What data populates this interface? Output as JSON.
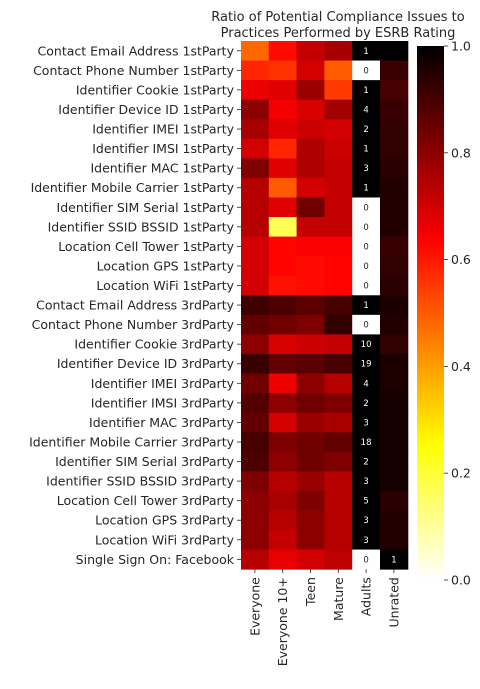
{
  "chart_data": {
    "type": "heatmap",
    "title_lines": [
      "Ratio of Potential Compliance Issues to",
      "Practices Performed by ESRB Rating"
    ],
    "rows": [
      "Contact Email Address 1stParty",
      "Contact Phone Number 1stParty",
      "Identifier Cookie 1stParty",
      "Identifier Device ID 1stParty",
      "Identifier IMEI 1stParty",
      "Identifier IMSI 1stParty",
      "Identifier MAC 1stParty",
      "Identifier Mobile Carrier 1stParty",
      "Identifier SIM Serial 1stParty",
      "Identifier SSID BSSID 1stParty",
      "Location Cell Tower 1stParty",
      "Location GPS 1stParty",
      "Location WiFi 1stParty",
      "Contact Email Address 3rdParty",
      "Contact Phone Number 3rdParty",
      "Identifier Cookie 3rdParty",
      "Identifier Device ID 3rdParty",
      "Identifier IMEI 3rdParty",
      "Identifier IMSI 3rdParty",
      "Identifier MAC 3rdParty",
      "Identifier Mobile Carrier 3rdParty",
      "Identifier SIM Serial 3rdParty",
      "Identifier SSID BSSID 3rdParty",
      "Location Cell Tower 3rdParty",
      "Location GPS 3rdParty",
      "Location WiFi 3rdParty",
      "Single Sign On: Facebook"
    ],
    "columns": [
      "Everyone",
      "Everyone 10+",
      "Teen",
      "Mature",
      "Adults",
      "Unrated"
    ],
    "values": [
      [
        0.48,
        0.62,
        0.72,
        0.76,
        1.0,
        1.0
      ],
      [
        0.58,
        0.56,
        0.7,
        0.5,
        0.0,
        0.92
      ],
      [
        0.66,
        0.68,
        0.78,
        0.55,
        1.0,
        0.9
      ],
      [
        0.8,
        0.65,
        0.69,
        0.77,
        1.0,
        0.92
      ],
      [
        0.76,
        0.68,
        0.71,
        0.7,
        1.0,
        0.93
      ],
      [
        0.7,
        0.58,
        0.75,
        0.71,
        1.0,
        0.93
      ],
      [
        0.82,
        0.68,
        0.75,
        0.72,
        1.0,
        0.94
      ],
      [
        0.74,
        0.5,
        0.7,
        0.72,
        1.0,
        0.95
      ],
      [
        0.74,
        0.68,
        0.84,
        0.72,
        0.0,
        0.95
      ],
      [
        0.74,
        0.17,
        0.72,
        0.72,
        0.0,
        0.95
      ],
      [
        0.7,
        0.63,
        0.64,
        0.64,
        0.0,
        0.92
      ],
      [
        0.7,
        0.63,
        0.62,
        0.63,
        0.0,
        0.93
      ],
      [
        0.7,
        0.61,
        0.62,
        0.63,
        0.0,
        0.94
      ],
      [
        0.91,
        0.89,
        0.87,
        0.9,
        1.0,
        0.96
      ],
      [
        0.86,
        0.84,
        0.82,
        0.93,
        0.0,
        0.95
      ],
      [
        0.8,
        0.69,
        0.71,
        0.72,
        1.0,
        0.93
      ],
      [
        0.92,
        0.86,
        0.87,
        0.9,
        1.0,
        0.96
      ],
      [
        0.84,
        0.66,
        0.8,
        0.74,
        1.0,
        0.96
      ],
      [
        0.88,
        0.8,
        0.84,
        0.82,
        1.0,
        0.97
      ],
      [
        0.86,
        0.7,
        0.78,
        0.76,
        1.0,
        0.97
      ],
      [
        0.9,
        0.82,
        0.84,
        0.86,
        1.0,
        0.97
      ],
      [
        0.89,
        0.8,
        0.84,
        0.82,
        1.0,
        0.97
      ],
      [
        0.82,
        0.74,
        0.78,
        0.74,
        1.0,
        0.97
      ],
      [
        0.8,
        0.76,
        0.82,
        0.74,
        1.0,
        0.94
      ],
      [
        0.8,
        0.74,
        0.8,
        0.74,
        1.0,
        0.95
      ],
      [
        0.8,
        0.72,
        0.8,
        0.74,
        1.0,
        0.95
      ],
      [
        0.74,
        0.67,
        0.7,
        0.73,
        0.0,
        1.0
      ]
    ],
    "annotations": {
      "column": "Adults",
      "values": [
        "1",
        "0",
        "1",
        "4",
        "2",
        "1",
        "3",
        "1",
        "0",
        "0",
        "0",
        "0",
        "0",
        "1",
        "0",
        "10",
        "19",
        "4",
        "2",
        "3",
        "18",
        "2",
        "3",
        "5",
        "3",
        "3",
        "0"
      ]
    },
    "extra_annotations": [
      {
        "row": "Single Sign On: Facebook",
        "column": "Unrated",
        "text": "1"
      }
    ],
    "colorbar": {
      "cmap": "hot_r",
      "range": [
        0.0,
        1.0
      ],
      "ticks": [
        "0.0",
        "0.2",
        "0.4",
        "0.6",
        "0.8",
        "1.0"
      ]
    }
  }
}
